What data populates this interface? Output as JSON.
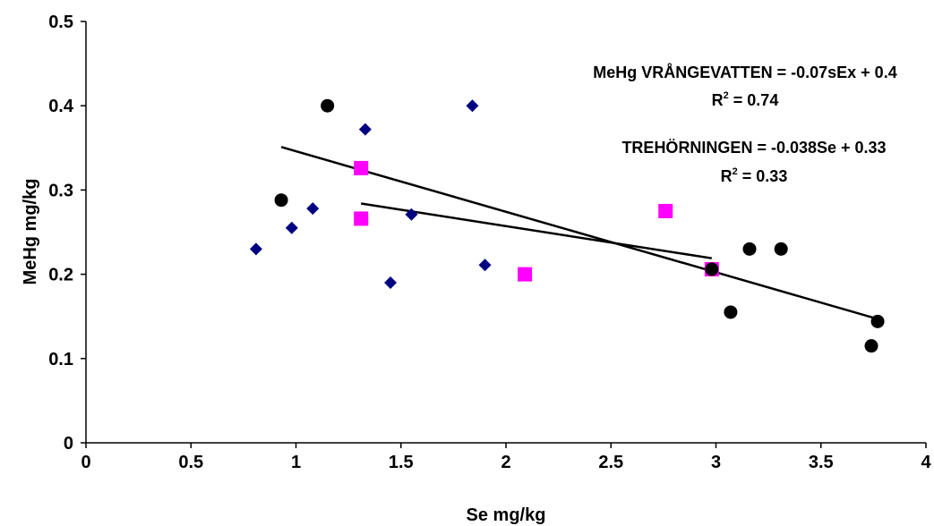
{
  "chart_data": {
    "type": "scatter",
    "xlabel": "Se mg/kg",
    "ylabel": "MeHg mg/kg",
    "xlim": [
      0,
      4
    ],
    "ylim": [
      0,
      0.5
    ],
    "xticks": [
      0,
      0.5,
      1,
      1.5,
      2,
      2.5,
      3,
      3.5,
      4
    ],
    "yticks": [
      0,
      0.1,
      0.2,
      0.3,
      0.4,
      0.5
    ],
    "xtick_labels": [
      "0",
      "0.5",
      "1",
      "1.5",
      "2",
      "2.5",
      "3",
      "3.5",
      "4"
    ],
    "ytick_labels": [
      "0",
      "0.1",
      "0.2",
      "0.3",
      "0.4",
      "0.5"
    ],
    "grid": false,
    "legend": "none",
    "series": [
      {
        "marker": "diamond",
        "color": "#000080",
        "points": [
          [
            0.81,
            0.23
          ],
          [
            0.98,
            0.255
          ],
          [
            1.08,
            0.278
          ],
          [
            1.33,
            0.372
          ],
          [
            1.45,
            0.19
          ],
          [
            1.55,
            0.271
          ],
          [
            1.84,
            0.4
          ],
          [
            1.9,
            0.211
          ]
        ]
      },
      {
        "marker": "square",
        "color": "#ff00ff",
        "points": [
          [
            1.31,
            0.326
          ],
          [
            1.31,
            0.266
          ],
          [
            2.09,
            0.2
          ],
          [
            2.76,
            0.275
          ],
          [
            2.98,
            0.206
          ]
        ]
      },
      {
        "marker": "circle",
        "color": "#000000",
        "points": [
          [
            0.93,
            0.288
          ],
          [
            1.15,
            0.4
          ],
          [
            2.98,
            0.206
          ],
          [
            3.07,
            0.155
          ],
          [
            3.16,
            0.23
          ],
          [
            3.31,
            0.23
          ],
          [
            3.74,
            0.115
          ],
          [
            3.77,
            0.144
          ]
        ]
      }
    ],
    "trendlines": [
      {
        "x": [
          0.93,
          3.77
        ],
        "y": [
          0.351,
          0.147
        ]
      },
      {
        "x": [
          1.31,
          2.98
        ],
        "y": [
          0.284,
          0.219
        ]
      }
    ],
    "annotations": [
      {
        "line1": "MeHg VRÅNGEVATTEN = -0.07sEx + 0.4",
        "r2_prefix": "R",
        "r2_sup": "2",
        "r2_value": " = 0.74"
      },
      {
        "line1": "TREHÖRNINGEN = -0.038Se + 0.33",
        "r2_prefix": "R",
        "r2_sup": "2",
        "r2_value": " = 0.33"
      }
    ]
  }
}
